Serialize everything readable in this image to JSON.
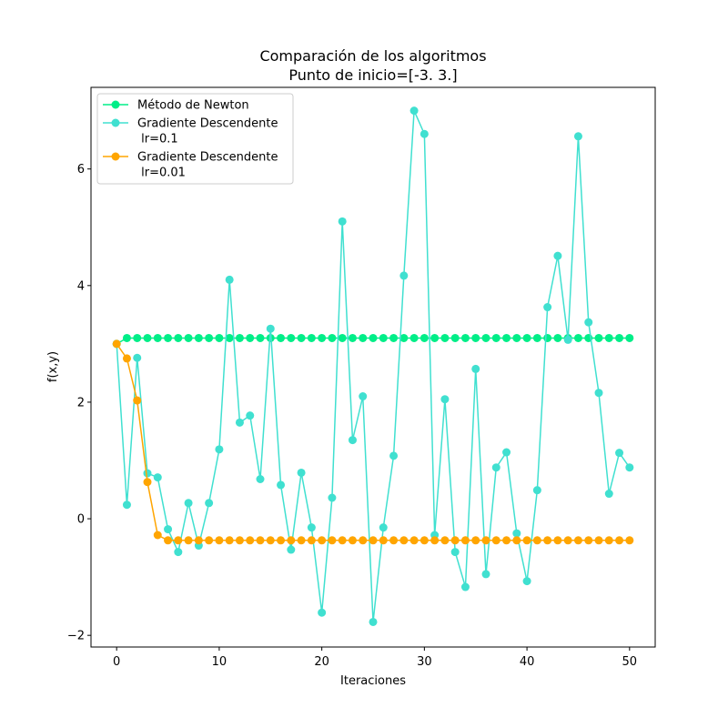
{
  "chart_data": {
    "type": "line",
    "title": [
      "Comparación de los algoritmos",
      "Punto de inicio=[-3.  3.]"
    ],
    "xlabel": "Iteraciones",
    "ylabel": "f(x,y)",
    "xlim": [
      -2.5,
      52.5
    ],
    "ylim": [
      -2.2,
      7.4
    ],
    "xticks": [
      0,
      10,
      20,
      30,
      40,
      50
    ],
    "yticks": [
      -2,
      0,
      2,
      4,
      6
    ],
    "grid": false,
    "legend_position": "upper-left",
    "series": [
      {
        "name": "Método de Newton",
        "color": "#00ee88",
        "x": [
          0,
          1,
          2,
          3,
          4,
          5,
          6,
          7,
          8,
          9,
          10,
          11,
          12,
          13,
          14,
          15,
          16,
          17,
          18,
          19,
          20,
          21,
          22,
          23,
          24,
          25,
          26,
          27,
          28,
          29,
          30,
          31,
          32,
          33,
          34,
          35,
          36,
          37,
          38,
          39,
          40,
          41,
          42,
          43,
          44,
          45,
          46,
          47,
          48,
          49,
          50
        ],
        "y": [
          3.0,
          3.1,
          3.1,
          3.1,
          3.1,
          3.1,
          3.1,
          3.1,
          3.1,
          3.1,
          3.1,
          3.1,
          3.1,
          3.1,
          3.1,
          3.1,
          3.1,
          3.1,
          3.1,
          3.1,
          3.1,
          3.1,
          3.1,
          3.1,
          3.1,
          3.1,
          3.1,
          3.1,
          3.1,
          3.1,
          3.1,
          3.1,
          3.1,
          3.1,
          3.1,
          3.1,
          3.1,
          3.1,
          3.1,
          3.1,
          3.1,
          3.1,
          3.1,
          3.1,
          3.1,
          3.1,
          3.1,
          3.1,
          3.1,
          3.1,
          3.1
        ]
      },
      {
        "name": [
          "Gradiente Descendente",
          " lr=0.1"
        ],
        "color": "#40e0d0",
        "x": [
          0,
          1,
          2,
          3,
          4,
          5,
          6,
          7,
          8,
          9,
          10,
          11,
          12,
          13,
          14,
          15,
          16,
          17,
          18,
          19,
          20,
          21,
          22,
          23,
          24,
          25,
          26,
          27,
          28,
          29,
          30,
          31,
          32,
          33,
          34,
          35,
          36,
          37,
          38,
          39,
          40,
          41,
          42,
          43,
          44,
          45,
          46,
          47,
          48,
          49,
          50
        ],
        "y": [
          3.0,
          0.24,
          2.76,
          0.78,
          0.71,
          -0.18,
          -0.57,
          0.27,
          -0.46,
          0.27,
          1.19,
          4.1,
          1.65,
          1.77,
          0.68,
          3.26,
          0.58,
          -0.53,
          0.79,
          -0.15,
          -1.61,
          0.36,
          5.1,
          1.35,
          2.1,
          -1.77,
          -0.15,
          1.08,
          4.17,
          7.0,
          6.6,
          -0.28,
          2.05,
          -0.57,
          -1.17,
          2.57,
          -0.95,
          0.88,
          1.14,
          -0.25,
          -1.07,
          0.49,
          3.63,
          4.51,
          3.07,
          6.56,
          3.37,
          2.16,
          0.43,
          1.13,
          0.88
        ]
      },
      {
        "name": [
          "Gradiente Descendente",
          " lr=0.01"
        ],
        "color": "#ffa500",
        "x": [
          0,
          1,
          2,
          3,
          4,
          5,
          6,
          7,
          8,
          9,
          10,
          11,
          12,
          13,
          14,
          15,
          16,
          17,
          18,
          19,
          20,
          21,
          22,
          23,
          24,
          25,
          26,
          27,
          28,
          29,
          30,
          31,
          32,
          33,
          34,
          35,
          36,
          37,
          38,
          39,
          40,
          41,
          42,
          43,
          44,
          45,
          46,
          47,
          48,
          49,
          50
        ],
        "y": [
          3.0,
          2.75,
          2.03,
          0.63,
          -0.28,
          -0.37,
          -0.37,
          -0.37,
          -0.37,
          -0.37,
          -0.37,
          -0.37,
          -0.37,
          -0.37,
          -0.37,
          -0.37,
          -0.37,
          -0.37,
          -0.37,
          -0.37,
          -0.37,
          -0.37,
          -0.37,
          -0.37,
          -0.37,
          -0.37,
          -0.37,
          -0.37,
          -0.37,
          -0.37,
          -0.37,
          -0.37,
          -0.37,
          -0.37,
          -0.37,
          -0.37,
          -0.37,
          -0.37,
          -0.37,
          -0.37,
          -0.37,
          -0.37,
          -0.37,
          -0.37,
          -0.37,
          -0.37,
          -0.37,
          -0.37,
          -0.37,
          -0.37,
          -0.37
        ]
      }
    ]
  }
}
